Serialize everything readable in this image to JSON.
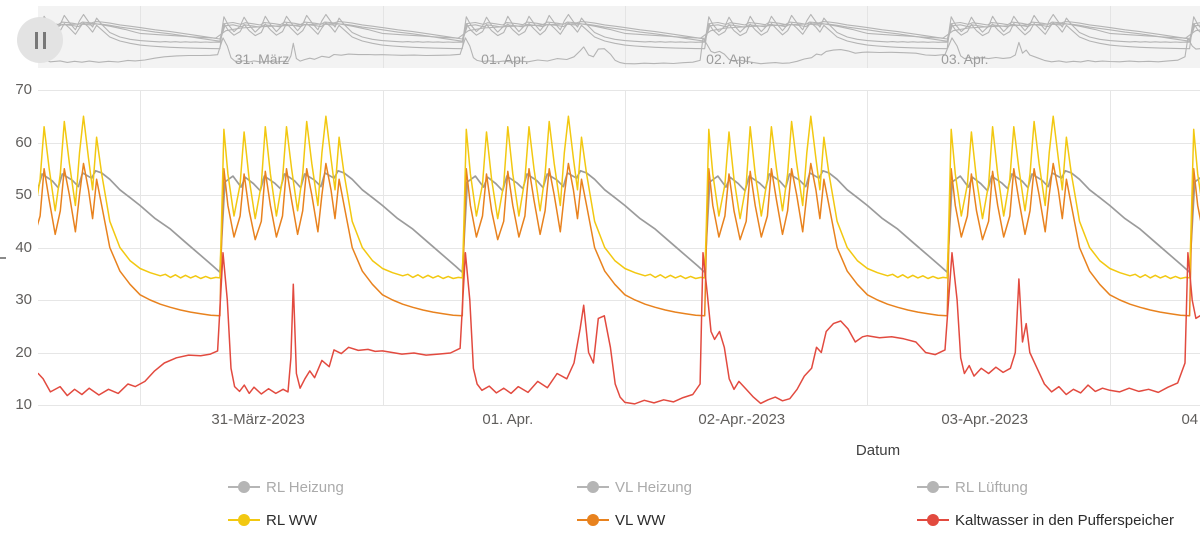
{
  "chart_data": {
    "type": "line",
    "title": "",
    "xlabel": "Datum",
    "ylabel": "",
    "x_unit_note": "days relative to 31-Maerz-2023 00:00",
    "x_domain_days": [
      -0.421,
      4.372
    ],
    "y_domain": [
      10,
      70
    ],
    "y_ticks": [
      70,
      60,
      50,
      40,
      30,
      20,
      10
    ],
    "day_gridlines_days": [
      0,
      1,
      2,
      3,
      4
    ],
    "x_tick_labels": [
      {
        "pos_days": 0.487,
        "label": "31-März-2023"
      },
      {
        "pos_days": 1.517,
        "label": "01. Apr."
      },
      {
        "pos_days": 2.482,
        "label": "02-Apr.-2023"
      },
      {
        "pos_days": 3.484,
        "label": "03-Apr.-2023"
      },
      {
        "pos_days": 4.33,
        "label": "04"
      }
    ],
    "overview": {
      "labels": [
        {
          "pos_days": 0.503,
          "label": "31. März"
        },
        {
          "pos_days": 1.505,
          "label": "01. Apr."
        },
        {
          "pos_days": 2.433,
          "label": "02. Apr."
        },
        {
          "pos_days": 3.402,
          "label": "03. Apr."
        }
      ],
      "line_color": "#b4b4b4",
      "background": "#f3f3f3",
      "gridline_color": "#e4e4e4"
    },
    "grid_color": "#e6e6e6",
    "main_draw_order": [
      0,
      4,
      3,
      5
    ],
    "repeat_days": [
      -1,
      0,
      1,
      2,
      3,
      4
    ],
    "series": [
      {
        "name": "RL Heizung",
        "color": "#9b9b9b",
        "legend_color": "#b5b5b5",
        "dimmed": true,
        "in_main": true,
        "in_overview": true,
        "width": 1.7,
        "pattern_hours": [
          0,
          1.5,
          3,
          4.5,
          6,
          7.2,
          7.9,
          8.4,
          9.2,
          10,
          10.4,
          11.2,
          11.9,
          12.3,
          13.3,
          13.9,
          14.3,
          15.3,
          15.9,
          16.3,
          17.3,
          17.9,
          18.3,
          19.2,
          19.6,
          20.2,
          21,
          22,
          23
        ],
        "pattern_values": [
          48,
          45.5,
          43.5,
          41,
          38.5,
          36.5,
          35.3,
          52.5,
          53.6,
          51.5,
          53.4,
          52.2,
          50.8,
          53.6,
          52.3,
          51.2,
          54,
          52.7,
          51.4,
          54,
          52.8,
          51.6,
          54.2,
          53.2,
          54.6,
          54.2,
          53,
          51,
          49.5
        ]
      },
      {
        "name": "VL Heizung",
        "color": "#b5b5b5",
        "legend_color": "#b5b5b5",
        "dimmed": true,
        "in_main": false,
        "in_overview": true,
        "width": 1.1,
        "pattern_hours": [
          0,
          1.5,
          3,
          4.5,
          6,
          7.2,
          7.9,
          8.4,
          9.2,
          10,
          10.4,
          11.2,
          11.9,
          12.3,
          13.3,
          13.9,
          14.3,
          15.3,
          15.9,
          16.3,
          17.3,
          17.9,
          18.3,
          19.2,
          19.6,
          20.2,
          21,
          22,
          23
        ],
        "pattern_values": [
          50.5,
          48,
          46,
          43.5,
          41,
          39,
          37.8,
          55,
          56.1,
          54,
          55.9,
          54.7,
          53.3,
          56.1,
          54.8,
          53.7,
          56.5,
          55.2,
          53.9,
          56.5,
          55.3,
          54.1,
          56.7,
          55.7,
          57.1,
          56.7,
          55.5,
          53.5,
          52
        ]
      },
      {
        "name": "RL Lüftung",
        "color": "#b5b5b5",
        "legend_color": "#b5b5b5",
        "dimmed": true,
        "in_main": false,
        "in_overview": true,
        "width": 1.1,
        "pattern_hours": [
          0,
          2,
          4,
          6,
          7.5,
          8.5,
          10,
          12,
          14,
          16,
          18,
          19.5,
          21,
          22.5,
          23.5
        ],
        "pattern_values": [
          44,
          42.5,
          41,
          39.5,
          38.8,
          47,
          50,
          51.5,
          52.5,
          53.5,
          54.5,
          55,
          52,
          48.5,
          45.5
        ]
      },
      {
        "name": "RL WW",
        "color": "#F2C811",
        "legend_color": "#F2C811",
        "dimmed": false,
        "in_main": true,
        "in_overview": true,
        "width": 1.5,
        "pattern_hours": [
          0,
          1,
          2,
          2.5,
          3,
          3.5,
          4,
          4.5,
          5,
          5.5,
          6,
          6.5,
          7,
          7.5,
          7.9,
          8.05,
          8.3,
          8.7,
          9.3,
          9.9,
          10.3,
          10.8,
          11.4,
          12,
          12.4,
          12.9,
          13.5,
          14.1,
          14.5,
          15,
          15.6,
          16.1,
          16.5,
          17,
          17.6,
          18,
          18.4,
          18.9,
          19.3,
          19.7,
          20.2,
          21,
          22,
          23
        ],
        "pattern_values": [
          36,
          35.2,
          34.6,
          34.9,
          34.3,
          34.8,
          34.2,
          34.7,
          34.2,
          34.6,
          34.1,
          34.5,
          34.1,
          34.3,
          34.2,
          44,
          62.5,
          54,
          46,
          52,
          62,
          53,
          45.5,
          52,
          63,
          54,
          46,
          53,
          63,
          55,
          47,
          54,
          64,
          56,
          48,
          58,
          65,
          57,
          51,
          61,
          54,
          45,
          40,
          37.5
        ]
      },
      {
        "name": "VL WW",
        "color": "#E8821E",
        "legend_color": "#E8821E",
        "dimmed": false,
        "in_main": true,
        "in_overview": true,
        "width": 1.5,
        "pattern_hours": [
          0,
          1,
          2,
          3,
          4,
          5,
          6,
          7,
          7.9,
          8.05,
          8.3,
          8.7,
          9.3,
          9.9,
          10.3,
          10.8,
          11.4,
          12,
          12.4,
          12.9,
          13.5,
          14.1,
          14.5,
          15,
          15.6,
          16.1,
          16.5,
          17,
          17.6,
          18,
          18.4,
          18.9,
          19.3,
          19.7,
          20.2,
          21,
          22,
          23
        ],
        "pattern_values": [
          31,
          30,
          29.2,
          28.6,
          28.1,
          27.7,
          27.4,
          27.1,
          27,
          40,
          55,
          48,
          42,
          46,
          54,
          47,
          41.5,
          45,
          54.5,
          48,
          42,
          46,
          55,
          49,
          42.5,
          47,
          55,
          50,
          43,
          50,
          56,
          51,
          45.5,
          53,
          48,
          40,
          35.5,
          33
        ]
      },
      {
        "name": "Kaltwasser in den Pufferspeicher",
        "color": "#E24A3F",
        "legend_color": "#E24A3F",
        "dimmed": false,
        "in_main": true,
        "in_overview": true,
        "width": 1.5,
        "points": [
          [
            -0.42,
            16
          ],
          [
            -0.4,
            15
          ],
          [
            -0.37,
            12.5
          ],
          [
            -0.33,
            13.5
          ],
          [
            -0.3,
            11.8
          ],
          [
            -0.27,
            13
          ],
          [
            -0.24,
            12
          ],
          [
            -0.21,
            13.2
          ],
          [
            -0.17,
            11.9
          ],
          [
            -0.13,
            13
          ],
          [
            -0.09,
            12.2
          ],
          [
            -0.05,
            14
          ],
          [
            -0.02,
            13.5
          ],
          [
            0.02,
            14.5
          ],
          [
            0.06,
            16.5
          ],
          [
            0.1,
            18
          ],
          [
            0.15,
            19
          ],
          [
            0.2,
            19.5
          ],
          [
            0.25,
            19.4
          ],
          [
            0.29,
            19.7
          ],
          [
            0.32,
            20.3
          ],
          [
            0.342,
            39
          ],
          [
            0.36,
            30
          ],
          [
            0.375,
            17
          ],
          [
            0.39,
            13.5
          ],
          [
            0.41,
            12.6
          ],
          [
            0.43,
            13.8
          ],
          [
            0.45,
            12.2
          ],
          [
            0.47,
            13.4
          ],
          [
            0.5,
            12.1
          ],
          [
            0.53,
            13.1
          ],
          [
            0.56,
            12.2
          ],
          [
            0.59,
            13
          ],
          [
            0.61,
            12.5
          ],
          [
            0.622,
            19
          ],
          [
            0.632,
            33
          ],
          [
            0.645,
            16
          ],
          [
            0.66,
            13.2
          ],
          [
            0.68,
            15
          ],
          [
            0.7,
            16.5
          ],
          [
            0.72,
            15.2
          ],
          [
            0.75,
            18.5
          ],
          [
            0.78,
            17.3
          ],
          [
            0.8,
            20.5
          ],
          [
            0.83,
            19.8
          ],
          [
            0.86,
            21
          ],
          [
            0.9,
            20.4
          ],
          [
            0.94,
            20.6
          ],
          [
            0.97,
            20.2
          ],
          [
            1.0,
            20.3
          ],
          [
            1.04,
            20
          ],
          [
            1.08,
            19.7
          ],
          [
            1.13,
            19.9
          ],
          [
            1.18,
            19.5
          ],
          [
            1.23,
            19.7
          ],
          [
            1.28,
            19.9
          ],
          [
            1.32,
            20.8
          ],
          [
            1.342,
            39
          ],
          [
            1.36,
            30
          ],
          [
            1.375,
            17
          ],
          [
            1.39,
            14
          ],
          [
            1.41,
            12.8
          ],
          [
            1.44,
            13.6
          ],
          [
            1.47,
            12.3
          ],
          [
            1.5,
            13.2
          ],
          [
            1.53,
            12.2
          ],
          [
            1.56,
            13.5
          ],
          [
            1.6,
            12.4
          ],
          [
            1.64,
            14.5
          ],
          [
            1.68,
            13.3
          ],
          [
            1.72,
            16
          ],
          [
            1.76,
            15
          ],
          [
            1.79,
            18
          ],
          [
            1.815,
            24.5
          ],
          [
            1.83,
            29
          ],
          [
            1.85,
            20
          ],
          [
            1.87,
            18
          ],
          [
            1.89,
            26.5
          ],
          [
            1.915,
            27
          ],
          [
            1.94,
            21
          ],
          [
            1.96,
            14
          ],
          [
            1.98,
            11.5
          ],
          [
            2.0,
            10.5
          ],
          [
            2.04,
            10.2
          ],
          [
            2.08,
            10.9
          ],
          [
            2.12,
            10.4
          ],
          [
            2.16,
            11
          ],
          [
            2.2,
            10.6
          ],
          [
            2.24,
            11.4
          ],
          [
            2.28,
            12
          ],
          [
            2.31,
            14
          ],
          [
            2.322,
            39
          ],
          [
            2.34,
            31
          ],
          [
            2.355,
            24
          ],
          [
            2.37,
            22.5
          ],
          [
            2.39,
            24
          ],
          [
            2.41,
            21
          ],
          [
            2.43,
            15
          ],
          [
            2.45,
            13
          ],
          [
            2.47,
            14.5
          ],
          [
            2.5,
            13
          ],
          [
            2.53,
            11.5
          ],
          [
            2.56,
            10.3
          ],
          [
            2.59,
            11
          ],
          [
            2.62,
            11.5
          ],
          [
            2.65,
            10.8
          ],
          [
            2.68,
            11.2
          ],
          [
            2.71,
            13
          ],
          [
            2.74,
            15.5
          ],
          [
            2.77,
            17
          ],
          [
            2.79,
            21
          ],
          [
            2.81,
            20
          ],
          [
            2.83,
            24
          ],
          [
            2.86,
            25.5
          ],
          [
            2.89,
            26
          ],
          [
            2.92,
            24.5
          ],
          [
            2.95,
            22
          ],
          [
            2.98,
            23
          ],
          [
            3.0,
            23.2
          ],
          [
            3.05,
            22.8
          ],
          [
            3.1,
            23
          ],
          [
            3.15,
            22.6
          ],
          [
            3.2,
            22
          ],
          [
            3.24,
            20
          ],
          [
            3.28,
            19.6
          ],
          [
            3.32,
            20.5
          ],
          [
            3.349,
            39
          ],
          [
            3.37,
            30
          ],
          [
            3.385,
            19
          ],
          [
            3.4,
            16
          ],
          [
            3.42,
            17.5
          ],
          [
            3.44,
            15.5
          ],
          [
            3.47,
            17
          ],
          [
            3.5,
            16
          ],
          [
            3.53,
            17.2
          ],
          [
            3.56,
            16.2
          ],
          [
            3.59,
            17
          ],
          [
            3.61,
            20
          ],
          [
            3.625,
            34
          ],
          [
            3.64,
            22
          ],
          [
            3.655,
            25.5
          ],
          [
            3.67,
            20
          ],
          [
            3.7,
            17
          ],
          [
            3.73,
            14
          ],
          [
            3.76,
            12.5
          ],
          [
            3.79,
            13.5
          ],
          [
            3.82,
            12
          ],
          [
            3.85,
            13
          ],
          [
            3.88,
            12.3
          ],
          [
            3.91,
            13.8
          ],
          [
            3.94,
            12.6
          ],
          [
            3.97,
            13.2
          ],
          [
            4.0,
            12.8
          ],
          [
            4.04,
            12.5
          ],
          [
            4.08,
            13.2
          ],
          [
            4.12,
            12.6
          ],
          [
            4.16,
            13
          ],
          [
            4.2,
            12.4
          ],
          [
            4.24,
            13.4
          ],
          [
            4.28,
            14.2
          ],
          [
            4.31,
            18
          ],
          [
            4.322,
            39
          ],
          [
            4.34,
            30
          ],
          [
            4.355,
            26.5
          ],
          [
            4.372,
            27
          ]
        ]
      }
    ]
  },
  "legend": {
    "enabled_text_color": "#2b2b2b",
    "dimmed_text_color": "#ababab"
  }
}
